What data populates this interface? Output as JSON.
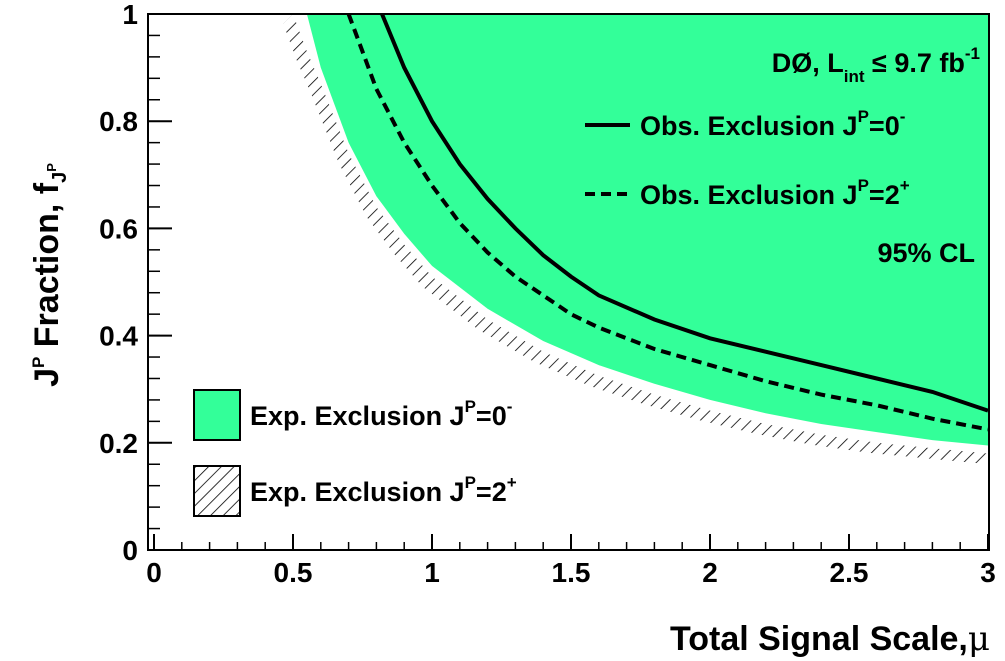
{
  "chart_data": {
    "type": "area",
    "xlabel": "Total Signal Scale,",
    "xlabel_symbol": "μ",
    "ylabel": {
      "main": "J",
      "sup": "P",
      "rest": " Fraction, f",
      "sub": "J",
      "subsup": "P"
    },
    "xlim": [
      0,
      3
    ],
    "ylim": [
      0,
      1
    ],
    "x_ticks": [
      {
        "value": 0,
        "label": "0"
      },
      {
        "value": 0.5,
        "label": "0.5"
      },
      {
        "value": 1,
        "label": "1"
      },
      {
        "value": 1.5,
        "label": "1.5"
      },
      {
        "value": 2,
        "label": "2"
      },
      {
        "value": 2.5,
        "label": "2.5"
      },
      {
        "value": 3,
        "label": "3"
      }
    ],
    "y_ticks": [
      {
        "value": 0,
        "label": "0"
      },
      {
        "value": 0.2,
        "label": "0.2"
      },
      {
        "value": 0.4,
        "label": "0.4"
      },
      {
        "value": 0.6,
        "label": "0.6"
      },
      {
        "value": 0.8,
        "label": "0.8"
      },
      {
        "value": 1,
        "label": "1"
      }
    ],
    "experiment": {
      "pre": "DØ, L",
      "sub": "int",
      "mid": " ≤ 9.7 fb",
      "sup": "-1"
    },
    "cl_label": "95% CL",
    "legend_obs_0": {
      "pre": "Obs. Exclusion J",
      "sup": "P",
      "mid": "=0",
      "sup2": "-"
    },
    "legend_obs_2": {
      "pre": "Obs. Exclusion J",
      "sup": "P",
      "mid": "=2",
      "sup2": "+"
    },
    "legend_exp_0": {
      "pre": "Exp. Exclusion J",
      "sup": "P",
      "mid": "=0",
      "sup2": "-"
    },
    "legend_exp_2": {
      "pre": "Exp. Exclusion J",
      "sup": "P",
      "mid": "=2",
      "sup2": "+"
    },
    "colors": {
      "exp_0_fill": "#33ff99",
      "obs_line": "#000000",
      "hatch": "#000000"
    },
    "series": [
      {
        "name": "Exp. Exclusion JP=0-",
        "kind": "filled_region",
        "x": [
          0.55,
          0.6,
          0.7,
          0.8,
          0.9,
          1.0,
          1.2,
          1.4,
          1.6,
          1.8,
          2.0,
          2.2,
          2.4,
          2.6,
          2.8,
          3.0
        ],
        "y": [
          1.0,
          0.9,
          0.76,
          0.66,
          0.59,
          0.53,
          0.45,
          0.39,
          0.345,
          0.31,
          0.28,
          0.255,
          0.235,
          0.22,
          0.205,
          0.195
        ]
      },
      {
        "name": "Exp. Exclusion JP=2+",
        "kind": "hatched_boundary",
        "x": [
          0.5,
          0.55,
          0.6,
          0.7,
          0.8,
          0.9,
          1.0,
          1.2,
          1.4,
          1.6,
          1.8,
          2.0,
          2.2,
          2.4,
          2.6,
          2.8,
          3.0
        ],
        "y": [
          1.0,
          0.93,
          0.87,
          0.74,
          0.64,
          0.57,
          0.51,
          0.43,
          0.37,
          0.325,
          0.29,
          0.26,
          0.235,
          0.215,
          0.2,
          0.19,
          0.18
        ]
      },
      {
        "name": "Obs. Exclusion JP=0-",
        "kind": "solid_line",
        "x": [
          0.82,
          0.9,
          1.0,
          1.1,
          1.2,
          1.3,
          1.4,
          1.5,
          1.6,
          1.8,
          2.0,
          2.2,
          2.4,
          2.6,
          2.8,
          3.0
        ],
        "y": [
          1.0,
          0.9,
          0.8,
          0.72,
          0.655,
          0.6,
          0.55,
          0.51,
          0.475,
          0.43,
          0.395,
          0.37,
          0.345,
          0.32,
          0.295,
          0.26
        ]
      },
      {
        "name": "Obs. Exclusion JP=2+",
        "kind": "dashed_line",
        "x": [
          0.7,
          0.8,
          0.9,
          1.0,
          1.1,
          1.2,
          1.3,
          1.4,
          1.5,
          1.6,
          1.8,
          2.0,
          2.2,
          2.4,
          2.6,
          2.8,
          3.0
        ],
        "y": [
          1.0,
          0.86,
          0.76,
          0.68,
          0.61,
          0.555,
          0.51,
          0.475,
          0.44,
          0.415,
          0.375,
          0.345,
          0.315,
          0.29,
          0.27,
          0.245,
          0.225
        ]
      }
    ]
  }
}
